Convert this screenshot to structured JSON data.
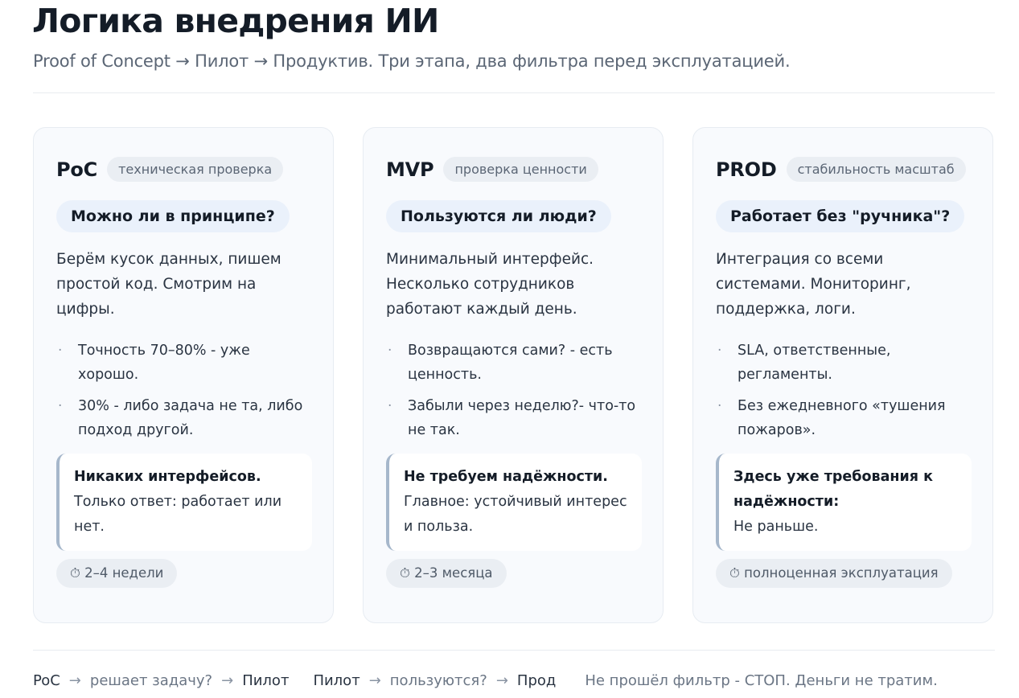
{
  "header": {
    "title": "Логика внедрения ИИ",
    "subtitle": "Proof of Concept → Пилот → Продуктив. Три этапа, два фильтра перед эксплуатацией."
  },
  "stages": [
    {
      "code": "PoC",
      "tag": "техническая проверка",
      "question": "Можно ли в принципе?",
      "description": "Берём кусок данных, пишем простой код. Смотрим на цифры.",
      "bullets": [
        "Точность 70–80% - уже хорошо.",
        "30% - либо задача не та, либо подход другой."
      ],
      "note_bold": "Никаких интерфейсов.",
      "note_text": "Только ответ: работает или нет.",
      "duration": "⏱ 2–4 недели"
    },
    {
      "code": "MVP",
      "tag": "проверка ценности",
      "question": "Пользуются ли люди?",
      "description": "Минимальный интерфейс. Несколько сотрудников работают каждый день.",
      "bullets": [
        "Возвращаются сами? - есть ценность.",
        "Забыли через неделю?- что-то не так."
      ],
      "note_bold": "Не требуем надёжности.",
      "note_text": "Главное: устойчивый интерес и польза.",
      "duration": "⏱ 2–3 месяца"
    },
    {
      "code": "PROD",
      "tag": "стабильность масштаб",
      "question": "Работает без \"ручника\"?",
      "description": "Интеграция со всеми системами. Мониторинг, поддержка, логи.",
      "bullets": [
        "SLA, ответственные, регламенты.",
        "Без ежедневного «тушения пожаров»."
      ],
      "note_bold": "Здесь уже требования к надёжности:",
      "note_text": "Не раньше.",
      "duration": "⏱ полноценная эксплуатация"
    }
  ],
  "footer": {
    "arrow": "→",
    "flow1": {
      "from": "PoC",
      "check": "решает задачу?",
      "to": "Пилот"
    },
    "flow2": {
      "from": "Пилот",
      "check": "пользуются?",
      "to": "Прод"
    },
    "rule": "Не прошёл фильтр - СТОП. Деньги не тратим."
  }
}
